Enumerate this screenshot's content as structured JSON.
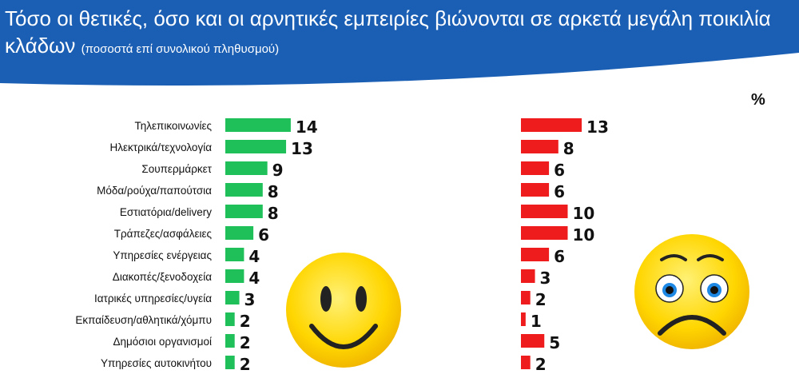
{
  "header": {
    "title": "Τόσο οι θετικές, όσο και οι αρνητικές εμπειρίες βιώνονται σε αρκετά μεγάλη ποικιλία κλάδων",
    "subtitle": "(ποσοστά επί συνολικού πληθυσμού)",
    "band_color": "#1b5fb4"
  },
  "unit_label": "%",
  "chart_data": {
    "type": "bar",
    "orientation": "horizontal",
    "categories": [
      "Τηλεπικοινωνίες",
      "Ηλεκτρικά/τεχνολογία",
      "Σουπερμάρκετ",
      "Μόδα/ρούχα/παπούτσια",
      "Εστιατόρια/delivery",
      "Τράπεζες/ασφάλειες",
      "Υπηρεσίες ενέργειας",
      "Διακοπές/ξενοδοχεία",
      "Ιατρικές υπηρεσίες/υγεία",
      "Εκπαίδευση/αθλητικά/χόμπυ",
      "Δημόσιοι οργανισμοί",
      "Υπηρεσίες αυτοκινήτου"
    ],
    "series": [
      {
        "values": [
          14,
          13,
          9,
          8,
          8,
          6,
          4,
          4,
          3,
          2,
          2,
          2
        ],
        "color": "#1fbf5a"
      },
      {
        "values": [
          13,
          8,
          6,
          6,
          10,
          10,
          6,
          3,
          2,
          1,
          5,
          2
        ],
        "color": "#ee1c1c"
      }
    ],
    "icons": [
      "smiley-face-icon",
      "sad-face-icon"
    ]
  }
}
